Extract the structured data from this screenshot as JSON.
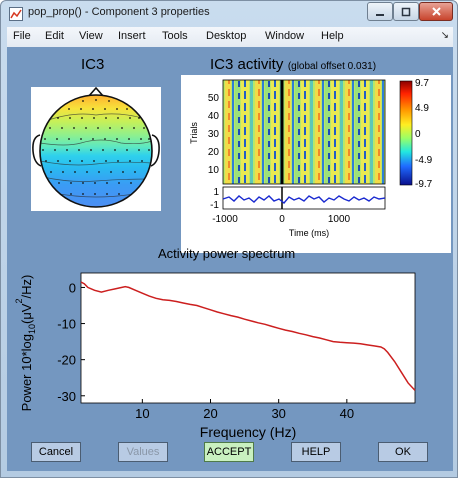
{
  "window": {
    "title": "pop_prop() - Component 3 properties"
  },
  "menu": [
    "File",
    "Edit",
    "View",
    "Insert",
    "Tools",
    "Desktop",
    "Window",
    "Help"
  ],
  "topomap": {
    "title": "IC3"
  },
  "erpimage": {
    "title": "IC3 activity",
    "subtitle": "(global offset 0.031)",
    "ylabel": "Trials",
    "y_ticks": [
      "50",
      "40",
      "30",
      "20",
      "10"
    ],
    "erp_ticks": [
      "1",
      "-1"
    ],
    "x_ticks": [
      "-1000",
      "0",
      "1000"
    ],
    "xlabel": "Time (ms)",
    "colorbar_ticks": [
      "9.7",
      "4.9",
      "0",
      "-4.9",
      "-9.7"
    ]
  },
  "chart_data": {
    "type": "line",
    "title": "Activity power spectrum",
    "xlabel": "Frequency (Hz)",
    "ylabel_parts": [
      "Power 10*log",
      "10",
      "(μV",
      "2",
      "/Hz)"
    ],
    "xlim": [
      1,
      50
    ],
    "ylim": [
      -32,
      4
    ],
    "x_ticks": [
      10,
      20,
      30,
      40
    ],
    "y_ticks": [
      0,
      -10,
      -20,
      -30
    ],
    "series": [
      {
        "color": "#cc1f1f",
        "x": [
          1,
          1.5,
          2,
          3,
          4,
          5,
          6,
          7,
          7.5,
          8,
          9,
          10,
          11,
          12,
          13,
          14,
          15,
          16,
          17,
          18,
          19,
          20,
          21,
          22,
          23,
          24,
          25,
          26,
          27,
          28,
          29,
          30,
          31,
          32,
          33,
          34,
          35,
          36,
          37,
          38,
          39,
          40,
          41,
          42,
          43,
          44,
          45,
          45.5,
          46,
          47,
          48,
          49,
          50
        ],
        "y": [
          1.5,
          1,
          0,
          -0.8,
          -1.3,
          -0.8,
          -0.4,
          0,
          0.2,
          0,
          -0.8,
          -1.6,
          -2.4,
          -3,
          -3.4,
          -3.6,
          -3.9,
          -4.3,
          -4.7,
          -5,
          -5.6,
          -6.2,
          -6.8,
          -7.3,
          -7.8,
          -8.2,
          -8.8,
          -9.3,
          -9.8,
          -10.2,
          -10.8,
          -11.3,
          -11.8,
          -12.2,
          -12.7,
          -13.1,
          -13.6,
          -14,
          -14.5,
          -15,
          -15.2,
          -15.3,
          -15.4,
          -15.6,
          -15.9,
          -16.2,
          -16.5,
          -17,
          -18,
          -20.5,
          -23.5,
          -26.5,
          -28.5
        ]
      }
    ]
  },
  "buttons": {
    "cancel": "Cancel",
    "values": "Values",
    "accept": "ACCEPT",
    "help": "HELP",
    "ok": "OK"
  },
  "colors": {
    "figure_bg": "#7497c0",
    "accept_bg": "#c9f0c0",
    "spectrum_line": "#cc1f1f"
  }
}
